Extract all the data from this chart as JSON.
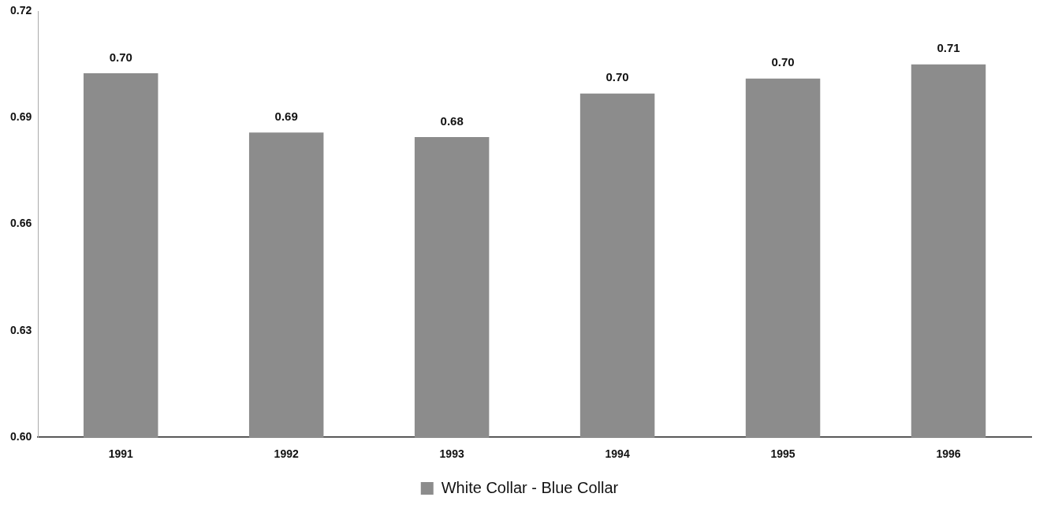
{
  "chart_data": {
    "type": "bar",
    "categories": [
      "1991",
      "1992",
      "1993",
      "1994",
      "1995",
      "1996"
    ],
    "series": [
      {
        "name": "White Collar - Blue Collar",
        "color": "#8c8c8c",
        "values": [
          0.7025,
          0.6858,
          0.6845,
          0.6968,
          0.701,
          0.705
        ],
        "value_labels": [
          "0.70",
          "0.69",
          "0.68",
          "0.70",
          "0.70",
          "0.71"
        ]
      }
    ],
    "ylim": [
      0.6,
      0.72
    ],
    "yticks": [
      {
        "value": 0.6,
        "label": "0.60"
      },
      {
        "value": 0.63,
        "label": "0.63"
      },
      {
        "value": 0.66,
        "label": "0.66"
      },
      {
        "value": 0.69,
        "label": "0.69"
      },
      {
        "value": 0.72,
        "label": "0.72"
      }
    ],
    "grid": false,
    "legend": "bottom"
  }
}
